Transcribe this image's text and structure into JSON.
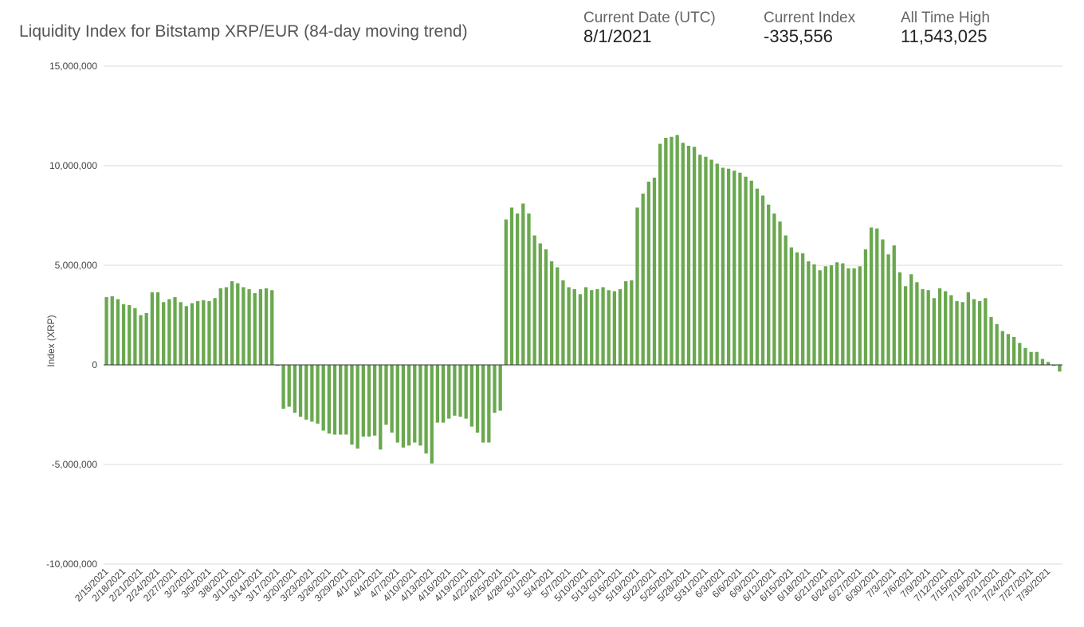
{
  "chart_data": {
    "type": "bar",
    "title": "Liquidity Index for Bitstamp XRP/EUR (84-day moving trend)",
    "stats": [
      {
        "label": "Current Date (UTC)",
        "value": "8/1/2021"
      },
      {
        "label": "Current Index",
        "value": "-335,556"
      },
      {
        "label": "All Time High",
        "value": "11,543,025"
      }
    ],
    "y_label": "Index (XRP)",
    "color": "#6aa84f",
    "grid": true,
    "ylim": [
      -10000000,
      15000000
    ],
    "yticks": [
      {
        "value": -10000000,
        "label": "-10,000,000"
      },
      {
        "value": -5000000,
        "label": "-5,000,000"
      },
      0,
      {
        "value": 5000000,
        "label": "5,000,000"
      },
      {
        "value": 10000000,
        "label": "10,000,000"
      },
      {
        "value": 15000000,
        "label": "15,000,000"
      }
    ],
    "categories": [
      "2/15/2021",
      null,
      null,
      "2/18/2021",
      null,
      null,
      "2/21/2021",
      null,
      null,
      "2/24/2021",
      null,
      null,
      "2/27/2021",
      null,
      null,
      "3/2/2021",
      null,
      null,
      "3/5/2021",
      null,
      null,
      "3/8/2021",
      null,
      null,
      "3/11/2021",
      null,
      null,
      "3/14/2021",
      null,
      null,
      "3/17/2021",
      null,
      null,
      "3/20/2021",
      null,
      null,
      "3/23/2021",
      null,
      null,
      "3/26/2021",
      null,
      null,
      "3/29/2021",
      null,
      null,
      "4/1/2021",
      null,
      null,
      "4/4/2021",
      null,
      null,
      "4/7/2021",
      null,
      null,
      "4/10/2021",
      null,
      null,
      "4/13/2021",
      null,
      null,
      "4/16/2021",
      null,
      null,
      "4/19/2021",
      null,
      null,
      "4/22/2021",
      null,
      null,
      "4/25/2021",
      null,
      null,
      "4/28/2021",
      null,
      null,
      "5/1/2021",
      null,
      null,
      "5/4/2021",
      null,
      null,
      "5/7/2021",
      null,
      null,
      "5/10/2021",
      null,
      null,
      "5/13/2021",
      null,
      null,
      "5/16/2021",
      null,
      null,
      "5/19/2021",
      null,
      null,
      "5/22/2021",
      null,
      null,
      "5/25/2021",
      null,
      null,
      "5/28/2021",
      null,
      null,
      "5/31/2021",
      null,
      null,
      "6/3/2021",
      null,
      null,
      "6/6/2021",
      null,
      null,
      "6/9/2021",
      null,
      null,
      "6/12/2021",
      null,
      null,
      "6/15/2021",
      null,
      null,
      "6/18/2021",
      null,
      null,
      "6/21/2021",
      null,
      null,
      "6/24/2021",
      null,
      null,
      "6/27/2021",
      null,
      null,
      "6/30/2021",
      null,
      null,
      "7/3/2021",
      null,
      null,
      "7/6/2021",
      null,
      null,
      "7/9/2021",
      null,
      null,
      "7/12/2021",
      null,
      null,
      "7/15/2021",
      null,
      null,
      "7/18/2021",
      null,
      null,
      "7/21/2021",
      null,
      null,
      "7/24/2021",
      null,
      null,
      "7/27/2021",
      null,
      null,
      "7/30/2021",
      null,
      null
    ],
    "values": [
      3400000,
      3450000,
      3300000,
      3050000,
      3000000,
      2850000,
      2500000,
      2600000,
      3650000,
      3650000,
      3150000,
      3300000,
      3400000,
      3150000,
      2950000,
      3100000,
      3200000,
      3250000,
      3200000,
      3350000,
      3850000,
      3900000,
      4200000,
      4100000,
      3900000,
      3800000,
      3600000,
      3800000,
      3850000,
      3750000,
      -50000,
      -2200000,
      -2100000,
      -2400000,
      -2600000,
      -2750000,
      -2850000,
      -2950000,
      -3300000,
      -3450000,
      -3500000,
      -3500000,
      -3500000,
      -4000000,
      -4200000,
      -3600000,
      -3600000,
      -3550000,
      -4250000,
      -3000000,
      -3400000,
      -3900000,
      -4150000,
      -4050000,
      -3900000,
      -4050000,
      -4450000,
      -4950000,
      -2900000,
      -2900000,
      -2700000,
      -2550000,
      -2600000,
      -2700000,
      -3100000,
      -3400000,
      -3900000,
      -3900000,
      -2400000,
      -2300000,
      7300000,
      7900000,
      7600000,
      8100000,
      7600000,
      6500000,
      6100000,
      5800000,
      5200000,
      4900000,
      4250000,
      3900000,
      3800000,
      3550000,
      3900000,
      3750000,
      3800000,
      3900000,
      3750000,
      3700000,
      3800000,
      4200000,
      4250000,
      7900000,
      8600000,
      9200000,
      9400000,
      11100000,
      11400000,
      11450000,
      11543025,
      11150000,
      11000000,
      10950000,
      10550000,
      10450000,
      10300000,
      10100000,
      9900000,
      9850000,
      9750000,
      9650000,
      9450000,
      9250000,
      8850000,
      8500000,
      8050000,
      7600000,
      7200000,
      6500000,
      5900000,
      5650000,
      5600000,
      5200000,
      5050000,
      4750000,
      4950000,
      5000000,
      5150000,
      5100000,
      4850000,
      4850000,
      4950000,
      5800000,
      6900000,
      6850000,
      6300000,
      5550000,
      6000000,
      4650000,
      3950000,
      4550000,
      4150000,
      3800000,
      3750000,
      3350000,
      3850000,
      3700000,
      3500000,
      3200000,
      3150000,
      3650000,
      3300000,
      3200000,
      3350000,
      2400000,
      2050000,
      1700000,
      1550000,
      1400000,
      1100000,
      850000,
      650000,
      650000,
      300000,
      150000,
      -50000,
      -335556
    ]
  }
}
